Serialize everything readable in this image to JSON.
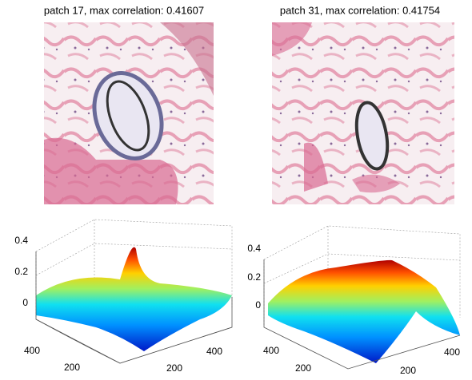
{
  "panels": [
    {
      "title": "patch 17, max correlation: 0.41607",
      "surface": {
        "zticks": [
          0.4,
          0.2,
          0
        ],
        "yticks": [
          400,
          200
        ],
        "xticks": [
          200,
          400
        ]
      }
    },
    {
      "title": "patch 31, max correlation: 0.41754",
      "surface": {
        "zticks": [
          0.4,
          0.2,
          0
        ],
        "yticks": [
          400,
          200
        ],
        "xticks": [
          200,
          400
        ]
      }
    }
  ]
}
